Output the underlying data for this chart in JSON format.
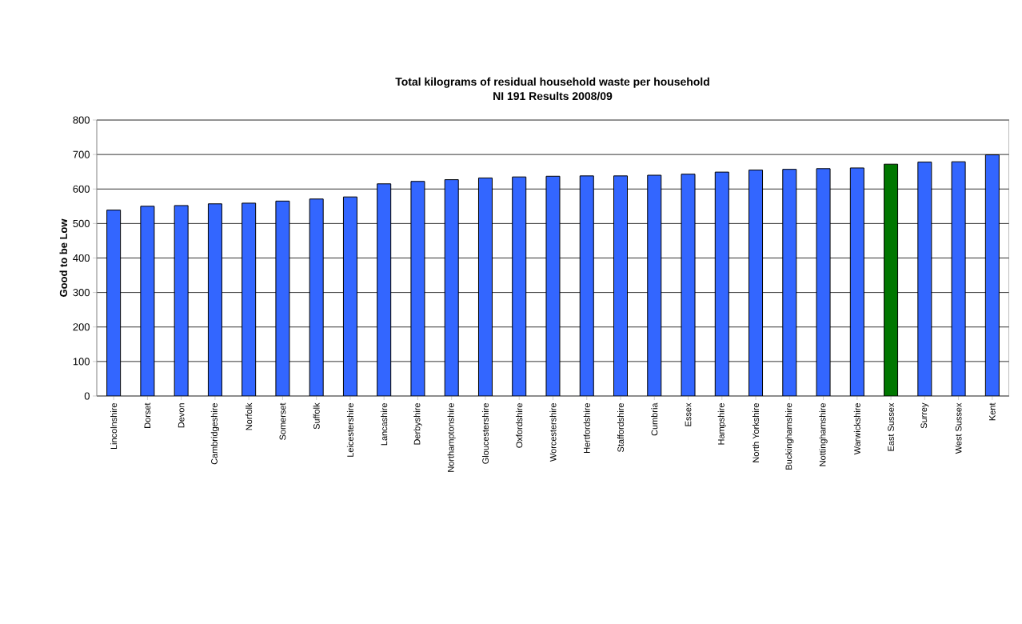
{
  "chart_data": {
    "type": "bar",
    "title": "Total kilograms of residual household waste per household\nNI 191 Results 2008/09",
    "ylabel": "Good to be Low",
    "categories": [
      "Lincolnshire",
      "Dorset",
      "Devon",
      "Cambridgeshire",
      "Norfolk",
      "Somerset",
      "Suffolk",
      "Leicestershire",
      "Lancashire",
      "Derbyshire",
      "Northamptonshire",
      "Gloucestershire",
      "Oxfordshire",
      "Worcestershire",
      "Hertfordshire",
      "Staffordshire",
      "Cumbria",
      "Essex",
      "Hampshire",
      "North Yorkshire",
      "Buckinghamshire",
      "Nottinghamshire",
      "Warwickshire",
      "East Sussex",
      "Surrey",
      "West Sussex",
      "Kent"
    ],
    "values": [
      539,
      550,
      552,
      557,
      559,
      565,
      571,
      577,
      615,
      622,
      627,
      632,
      635,
      637,
      638,
      638,
      640,
      643,
      649,
      655,
      657,
      659,
      661,
      672,
      678,
      679,
      699
    ],
    "colors": [
      "#3366ff",
      "#3366ff",
      "#3366ff",
      "#3366ff",
      "#3366ff",
      "#3366ff",
      "#3366ff",
      "#3366ff",
      "#3366ff",
      "#3366ff",
      "#3366ff",
      "#3366ff",
      "#3366ff",
      "#3366ff",
      "#3366ff",
      "#3366ff",
      "#3366ff",
      "#3366ff",
      "#3366ff",
      "#3366ff",
      "#3366ff",
      "#3366ff",
      "#3366ff",
      "#007700",
      "#3366ff",
      "#3366ff",
      "#3366ff"
    ],
    "ylim": [
      0,
      800
    ],
    "yticks": [
      0,
      100,
      200,
      300,
      400,
      500,
      600,
      700,
      800
    ],
    "grid": "y"
  }
}
